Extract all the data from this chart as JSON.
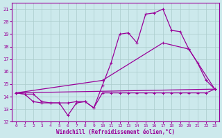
{
  "background_color": "#cce9ec",
  "grid_color": "#aacccc",
  "line_color": "#990099",
  "xlabel": "Windchill (Refroidissement éolien,°C)",
  "xlim": [
    -0.5,
    23.5
  ],
  "ylim": [
    12,
    21.5
  ],
  "xticks": [
    0,
    1,
    2,
    3,
    4,
    5,
    6,
    7,
    8,
    9,
    10,
    11,
    12,
    13,
    14,
    15,
    16,
    17,
    18,
    19,
    20,
    21,
    22,
    23
  ],
  "yticks": [
    12,
    13,
    14,
    15,
    16,
    17,
    18,
    19,
    20,
    21
  ],
  "line1_x": [
    0,
    1,
    2,
    3,
    4,
    5,
    6,
    7,
    8,
    9,
    10,
    11,
    12,
    13,
    14,
    15,
    16,
    17,
    18,
    19,
    20,
    21,
    22,
    23
  ],
  "line1_y": [
    14.3,
    14.2,
    13.6,
    13.5,
    13.5,
    13.5,
    12.5,
    13.5,
    13.6,
    13.1,
    14.9,
    16.7,
    19.0,
    19.1,
    18.3,
    20.6,
    20.7,
    21.0,
    19.3,
    19.2,
    17.8,
    16.7,
    15.3,
    14.6
  ],
  "line2_x": [
    0,
    1,
    2,
    3,
    4,
    5,
    6,
    7,
    8,
    9,
    10,
    11,
    12,
    13,
    14,
    15,
    16,
    17,
    18,
    19,
    20,
    21,
    22,
    23
  ],
  "line2_y": [
    14.3,
    14.2,
    14.2,
    13.6,
    13.5,
    13.5,
    13.5,
    13.6,
    13.6,
    13.1,
    14.3,
    14.3,
    14.3,
    14.3,
    14.3,
    14.3,
    14.3,
    14.3,
    14.3,
    14.3,
    14.3,
    14.3,
    14.3,
    14.6
  ],
  "line3_x": [
    0,
    23
  ],
  "line3_y": [
    14.3,
    14.6
  ],
  "line4_x": [
    0,
    10,
    17,
    20,
    23
  ],
  "line4_y": [
    14.3,
    15.3,
    18.3,
    17.8,
    14.6
  ]
}
